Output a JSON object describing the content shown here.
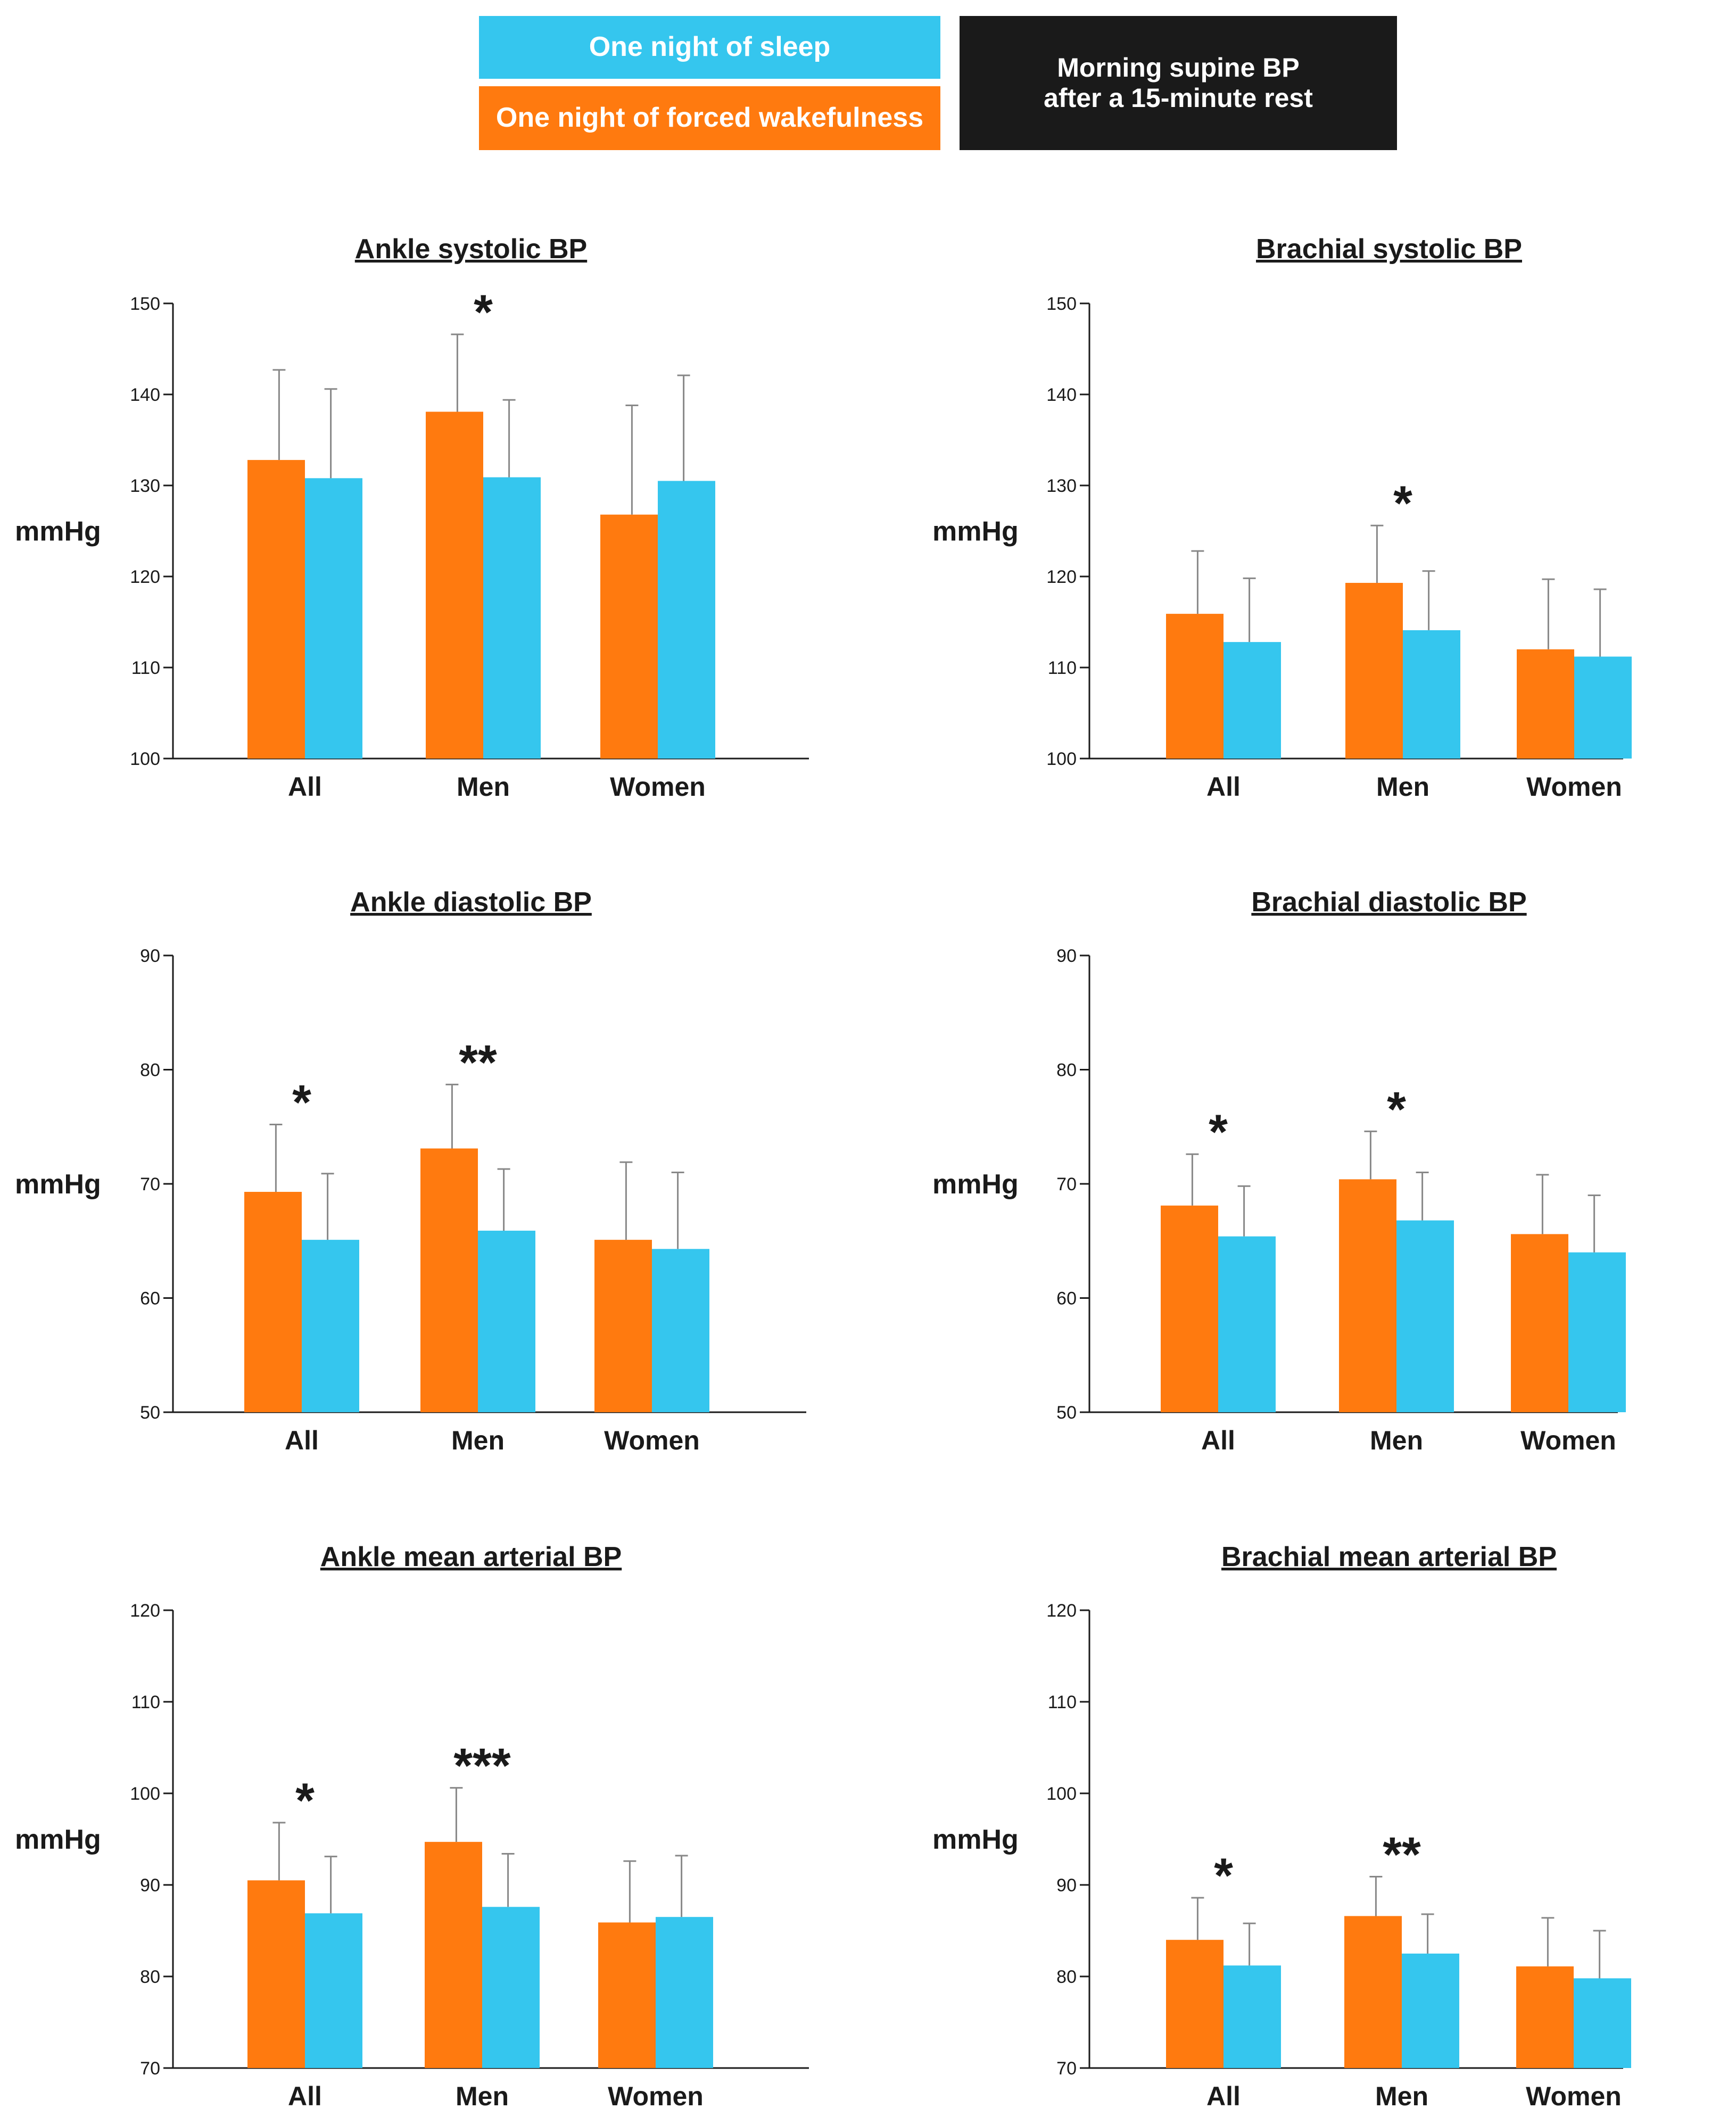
{
  "legend": {
    "sleep_label": "One night of sleep",
    "wake_label": "One night of forced wakefulness",
    "condition_line1": "Morning supine BP",
    "condition_line2": "after a 15-minute rest"
  },
  "colors": {
    "wake": "#ff7a0f",
    "sleep": "#35c6ee",
    "ink": "#1a1a1a"
  },
  "chart_data": [
    {
      "type": "bar",
      "title": "Ankle systolic BP",
      "ylabel": "mmHg",
      "categories": [
        "All",
        "Men",
        "Women"
      ],
      "ylim": [
        100,
        150
      ],
      "yticks": [
        100,
        110,
        120,
        130,
        140,
        150
      ],
      "series": [
        {
          "name": "One night of forced wakefulness",
          "values": [
            132.8,
            138.1,
            126.8
          ],
          "err": [
            9.9,
            8.5,
            12.0
          ]
        },
        {
          "name": "One night of sleep",
          "values": [
            130.8,
            130.9,
            130.5
          ],
          "err": [
            9.8,
            8.5,
            11.6
          ]
        }
      ],
      "significance": [
        "",
        "*",
        ""
      ]
    },
    {
      "type": "bar",
      "title": "Brachial systolic BP",
      "ylabel": "mmHg",
      "categories": [
        "All",
        "Men",
        "Women"
      ],
      "ylim": [
        100,
        150
      ],
      "yticks": [
        100,
        110,
        120,
        130,
        140,
        150
      ],
      "series": [
        {
          "name": "One night of forced wakefulness",
          "values": [
            115.9,
            119.3,
            112.0
          ],
          "err": [
            6.9,
            6.3,
            7.7
          ]
        },
        {
          "name": "One night of sleep",
          "values": [
            112.8,
            114.1,
            111.2
          ],
          "err": [
            7.0,
            6.5,
            7.4
          ]
        }
      ],
      "significance": [
        "",
        "*",
        ""
      ]
    },
    {
      "type": "bar",
      "title": "Ankle diastolic BP",
      "ylabel": "mmHg",
      "categories": [
        "All",
        "Men",
        "Women"
      ],
      "ylim": [
        50,
        90
      ],
      "yticks": [
        50,
        60,
        70,
        80,
        90
      ],
      "series": [
        {
          "name": "One night of forced wakefulness",
          "values": [
            69.3,
            73.1,
            65.1
          ],
          "err": [
            5.9,
            5.6,
            6.8
          ]
        },
        {
          "name": "One night of sleep",
          "values": [
            65.1,
            65.9,
            64.3
          ],
          "err": [
            5.8,
            5.4,
            6.7
          ]
        }
      ],
      "significance": [
        "*",
        "**",
        ""
      ]
    },
    {
      "type": "bar",
      "title": "Brachial diastolic BP",
      "ylabel": "mmHg",
      "categories": [
        "All",
        "Men",
        "Women"
      ],
      "ylim": [
        50,
        90
      ],
      "yticks": [
        50,
        60,
        70,
        80,
        90
      ],
      "series": [
        {
          "name": "One night of forced wakefulness",
          "values": [
            68.1,
            70.4,
            65.6
          ],
          "err": [
            4.5,
            4.2,
            5.2
          ]
        },
        {
          "name": "One night of sleep",
          "values": [
            65.4,
            66.8,
            64.0
          ],
          "err": [
            4.4,
            4.2,
            5.0
          ]
        }
      ],
      "significance": [
        "*",
        "*",
        ""
      ]
    },
    {
      "type": "bar",
      "title": "Ankle mean arterial BP",
      "ylabel": "mmHg",
      "categories": [
        "All",
        "Men",
        "Women"
      ],
      "ylim": [
        70,
        120
      ],
      "yticks": [
        70,
        80,
        90,
        100,
        110,
        120
      ],
      "series": [
        {
          "name": "One night of forced wakefulness",
          "values": [
            90.5,
            94.7,
            85.9
          ],
          "err": [
            6.3,
            5.9,
            6.7
          ]
        },
        {
          "name": "One night of sleep",
          "values": [
            86.9,
            87.6,
            86.5
          ],
          "err": [
            6.2,
            5.8,
            6.7
          ]
        }
      ],
      "significance": [
        "*",
        "***",
        ""
      ]
    },
    {
      "type": "bar",
      "title": "Brachial mean arterial BP",
      "ylabel": "mmHg",
      "categories": [
        "All",
        "Men",
        "Women"
      ],
      "ylim": [
        70,
        120
      ],
      "yticks": [
        70,
        80,
        90,
        100,
        110,
        120
      ],
      "series": [
        {
          "name": "One night of forced wakefulness",
          "values": [
            84.0,
            86.6,
            81.1
          ],
          "err": [
            4.6,
            4.3,
            5.3
          ]
        },
        {
          "name": "One night of sleep",
          "values": [
            81.2,
            82.5,
            79.8
          ],
          "err": [
            4.6,
            4.3,
            5.2
          ]
        }
      ],
      "significance": [
        "*",
        "**",
        ""
      ]
    }
  ]
}
